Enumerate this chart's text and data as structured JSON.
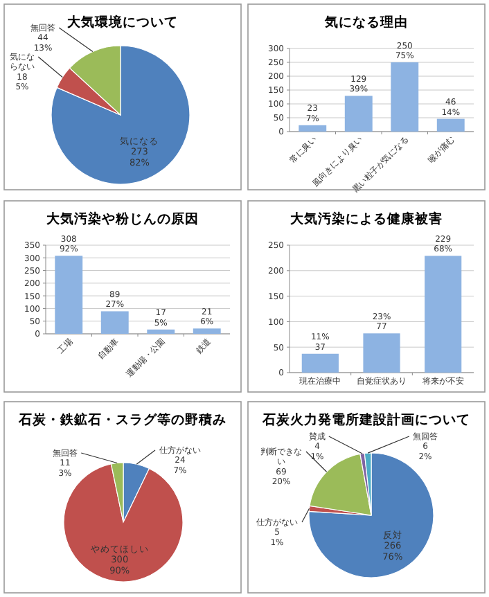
{
  "chart_data": [
    {
      "type": "pie",
      "title": "大気環境について",
      "categories": [
        "気になる",
        "気にならない",
        "無回答"
      ],
      "values": [
        273,
        18,
        44
      ],
      "value_labels": [
        "273\n82%",
        "18\n5%",
        "44\n13%"
      ],
      "colors": [
        "#4f81bd",
        "#c0504d",
        "#9bbb59"
      ]
    },
    {
      "type": "bar",
      "title": "気になる理由",
      "categories": [
        "常に臭い",
        "風向きにより臭い",
        "黒い粒子が気になる",
        "喉が痛む"
      ],
      "values": [
        23,
        129,
        250,
        46
      ],
      "value_labels": [
        "23\n7%",
        "129\n39%",
        "250\n75%",
        "46\n14%"
      ],
      "color": "#8db3e2",
      "ylim": [
        0,
        300
      ],
      "yticks": [
        0,
        50,
        100,
        150,
        200,
        250,
        300
      ],
      "grid": "y"
    },
    {
      "type": "bar",
      "title": "大気汚染や粉じんの原因",
      "categories": [
        "工場",
        "自動車",
        "運動場・公園",
        "鉄道"
      ],
      "values": [
        308,
        89,
        17,
        21
      ],
      "value_labels": [
        "308\n92%",
        "89\n27%",
        "17\n5%",
        "21\n6%"
      ],
      "color": "#8db3e2",
      "ylim": [
        0,
        350
      ],
      "yticks": [
        0,
        50,
        100,
        150,
        200,
        250,
        300,
        350
      ],
      "grid": "y"
    },
    {
      "type": "bar",
      "title": "大気汚染による健康被害",
      "categories": [
        "現在治療中",
        "自覚症状あり",
        "将来が不安"
      ],
      "values": [
        37,
        77,
        229
      ],
      "value_labels": [
        "11%\n37",
        "23%\n77",
        "229\n68%"
      ],
      "color": "#8db3e2",
      "ylim": [
        0,
        250
      ],
      "yticks": [
        0,
        50,
        100,
        150,
        200,
        250
      ],
      "grid": "y"
    },
    {
      "type": "pie",
      "title": "石炭・鉄鉱石・スラグ等の野積み",
      "categories": [
        "仕方がない",
        "やめてほしい",
        "無回答"
      ],
      "values": [
        24,
        300,
        11
      ],
      "value_labels": [
        "24\n7%",
        "300\n90%",
        "11\n3%"
      ],
      "colors": [
        "#4f81bd",
        "#c0504d",
        "#9bbb59"
      ]
    },
    {
      "type": "pie",
      "title": "石炭火力発電所建設計画について",
      "categories": [
        "反対",
        "仕方がない",
        "判断できない",
        "賛成",
        "無回答"
      ],
      "values": [
        266,
        5,
        69,
        4,
        6
      ],
      "value_labels": [
        "266\n76%",
        "5\n1%",
        "69\n20%",
        "4\n1%",
        "6\n2%"
      ],
      "colors": [
        "#4f81bd",
        "#c0504d",
        "#9bbb59",
        "#8064a2",
        "#4bacc6"
      ]
    }
  ]
}
